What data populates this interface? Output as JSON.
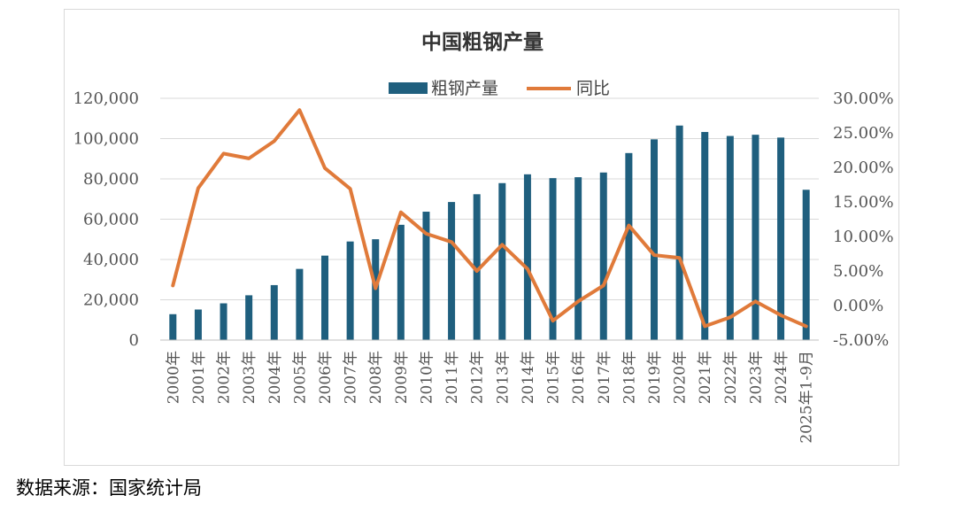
{
  "chart_data": {
    "type": "bar+line",
    "title": "中国粗钢产量",
    "categories": [
      "2000年",
      "2001年",
      "2002年",
      "2003年",
      "2004年",
      "2005年",
      "2006年",
      "2007年",
      "2008年",
      "2009年",
      "2010年",
      "2011年",
      "2012年",
      "2013年",
      "2014年",
      "2015年",
      "2016年",
      "2017年",
      "2018年",
      "2019年",
      "2020年",
      "2021年",
      "2022年",
      "2023年",
      "2024年",
      "2025年1-9月"
    ],
    "series": [
      {
        "name": "粗钢产量",
        "type": "bar",
        "axis": "left",
        "color": "#1f5f7e",
        "values": [
          12850,
          15163,
          18237,
          22234,
          27280,
          35324,
          41915,
          48929,
          50049,
          57218,
          63723,
          68528,
          72388,
          77904,
          82270,
          80383,
          80837,
          83173,
          92826,
          99634,
          106477,
          103279,
          101300,
          101908,
          100509,
          74600
        ]
      },
      {
        "name": "同比",
        "type": "line",
        "axis": "right",
        "color": "#e07a3a",
        "values": [
          2.9,
          17.0,
          22.0,
          21.3,
          23.8,
          28.3,
          19.9,
          16.9,
          2.5,
          13.5,
          10.4,
          9.2,
          5.0,
          8.8,
          5.3,
          -2.2,
          0.6,
          2.9,
          11.6,
          7.3,
          6.9,
          -3.0,
          -1.7,
          0.6,
          -1.4,
          -3.0
        ]
      }
    ],
    "yAxisLeft": {
      "min": 0,
      "max": 120000,
      "ticks": [
        "0",
        "20,000",
        "40,000",
        "60,000",
        "80,000",
        "100,000",
        "120,000"
      ]
    },
    "yAxisRight": {
      "min": -5,
      "max": 30,
      "ticks": [
        "-5.00%",
        "0.00%",
        "5.00%",
        "10.00%",
        "15.00%",
        "20.00%",
        "25.00%",
        "30.00%"
      ]
    },
    "legend": "top-center",
    "grid": true
  },
  "footer": {
    "source": "数据来源：国家统计局"
  }
}
